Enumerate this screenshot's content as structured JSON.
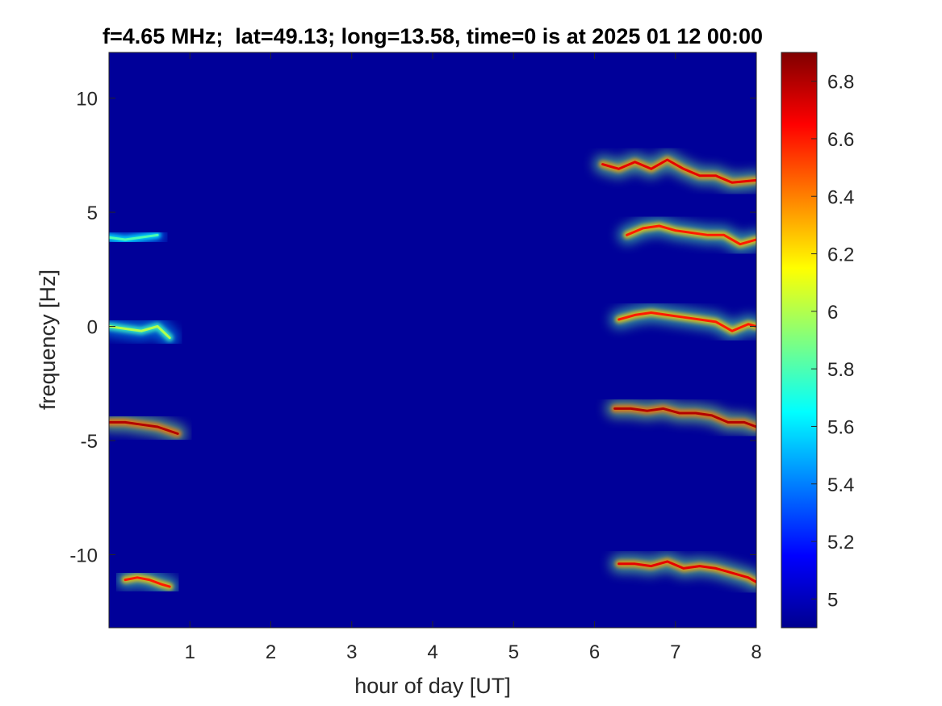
{
  "chart_data": {
    "type": "heatmap",
    "title": "f=4.65 MHz;  lat=49.13; long=13.58, time=0 is at 2025 01 12 00:00",
    "xlabel": "hour of day [UT]",
    "ylabel": "frequency [Hz]",
    "xlim": [
      0,
      8
    ],
    "ylim": [
      -13.2,
      12
    ],
    "xticks": [
      1,
      2,
      3,
      4,
      5,
      6,
      7,
      8
    ],
    "xtick_labels": [
      "1",
      "2",
      "3",
      "4",
      "5",
      "6",
      "7",
      "8"
    ],
    "yticks": [
      -10,
      -5,
      0,
      5,
      10
    ],
    "ytick_labels": [
      "-10",
      "-5",
      "0",
      "5",
      "10"
    ],
    "colorbar": {
      "range": [
        4.9,
        6.9
      ],
      "ticks": [
        5,
        5.2,
        5.4,
        5.6,
        5.8,
        6,
        6.2,
        6.4,
        6.6,
        6.8
      ],
      "tick_labels": [
        "5",
        "5.2",
        "5.4",
        "5.6",
        "5.8",
        "6",
        "6.2",
        "6.4",
        "6.6",
        "6.8"
      ],
      "colormap": "jet"
    },
    "background_level": 4.95,
    "grid": false,
    "series": [
      {
        "x": [
          0.0,
          0.2,
          0.4,
          0.6
        ],
        "y": [
          3.9,
          3.8,
          3.9,
          4.0
        ],
        "level": 5.8
      },
      {
        "x": [
          0.0,
          0.2,
          0.4,
          0.6,
          0.75
        ],
        "y": [
          0.0,
          -0.1,
          -0.2,
          0.0,
          -0.5
        ],
        "level": 6.0
      },
      {
        "x": [
          0.0,
          0.2,
          0.4,
          0.6,
          0.85
        ],
        "y": [
          -4.2,
          -4.2,
          -4.3,
          -4.4,
          -4.7
        ],
        "level": 6.8
      },
      {
        "x": [
          0.2,
          0.35,
          0.5,
          0.65,
          0.75
        ],
        "y": [
          -11.1,
          -11.0,
          -11.1,
          -11.3,
          -11.4
        ],
        "level": 6.6
      },
      {
        "x": [
          6.1,
          6.3,
          6.5,
          6.7,
          6.9,
          7.1,
          7.3,
          7.5,
          7.7,
          8.0
        ],
        "y": [
          7.1,
          6.9,
          7.2,
          6.9,
          7.3,
          6.9,
          6.6,
          6.6,
          6.3,
          6.4
        ],
        "level": 6.7
      },
      {
        "x": [
          6.4,
          6.6,
          6.8,
          7.0,
          7.2,
          7.4,
          7.6,
          7.8,
          8.0
        ],
        "y": [
          4.0,
          4.3,
          4.4,
          4.2,
          4.1,
          4.0,
          4.0,
          3.6,
          3.8
        ],
        "level": 6.6
      },
      {
        "x": [
          6.3,
          6.5,
          6.7,
          6.9,
          7.1,
          7.3,
          7.5,
          7.7,
          7.9,
          8.0
        ],
        "y": [
          0.3,
          0.5,
          0.6,
          0.5,
          0.4,
          0.3,
          0.2,
          -0.2,
          0.1,
          0.0
        ],
        "level": 6.6
      },
      {
        "x": [
          6.25,
          6.45,
          6.65,
          6.85,
          7.05,
          7.25,
          7.45,
          7.65,
          7.85,
          8.0
        ],
        "y": [
          -3.6,
          -3.6,
          -3.7,
          -3.6,
          -3.8,
          -3.8,
          -3.9,
          -4.2,
          -4.2,
          -4.4
        ],
        "level": 6.8
      },
      {
        "x": [
          6.3,
          6.5,
          6.7,
          6.9,
          7.1,
          7.3,
          7.5,
          7.7,
          7.9,
          8.0
        ],
        "y": [
          -10.4,
          -10.4,
          -10.5,
          -10.3,
          -10.6,
          -10.5,
          -10.6,
          -10.8,
          -11.0,
          -11.2
        ],
        "level": 6.7
      }
    ]
  }
}
